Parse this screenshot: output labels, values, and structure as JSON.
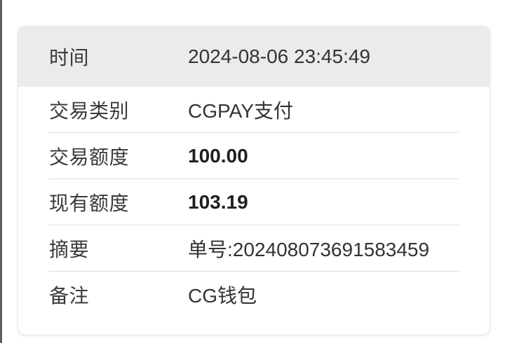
{
  "page": {
    "background_color": "#ffffff",
    "left_edge_line_color": "#5e5e5e"
  },
  "card": {
    "colors": {
      "header_background": "#ebebeb",
      "divider": "#dcdcdc",
      "border": "#e7e7e7",
      "label_text": "#3a3a3a",
      "value_text": "#333333"
    },
    "header_row": {
      "label": "时间",
      "value": "2024-08-06 23:45:49"
    },
    "rows": [
      {
        "label": "交易类别",
        "value": "CGPAY支付"
      },
      {
        "label": "交易额度",
        "value": "100.00"
      },
      {
        "label": "现有额度",
        "value": "103.19"
      },
      {
        "label": "摘要",
        "value": "单号:202408073691583459"
      },
      {
        "label": "备注",
        "value": "CG钱包"
      }
    ]
  }
}
